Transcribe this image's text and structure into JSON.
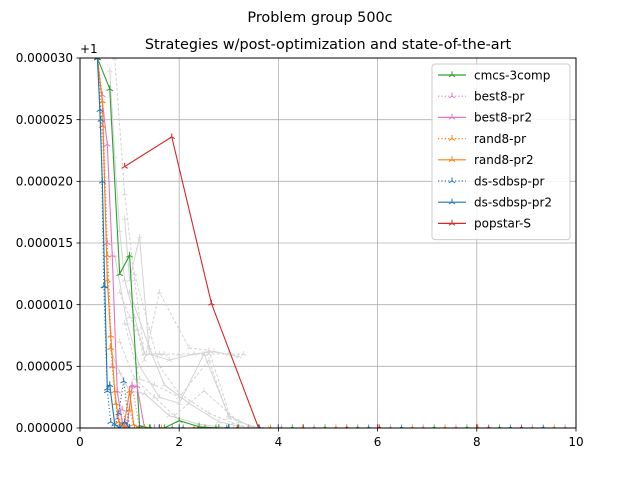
{
  "chart_data": {
    "type": "line",
    "suptitle": "Problem group 500c",
    "title": "Strategies w/post-optimization and state-of-the-art",
    "xlabel": "",
    "ylabel": "",
    "offset_text": "+1",
    "xlim": [
      0,
      10
    ],
    "ylim": [
      0,
      3e-05
    ],
    "xticks": [
      0,
      2,
      4,
      6,
      8,
      10
    ],
    "xtick_labels": [
      "0",
      "2",
      "4",
      "6",
      "8",
      "10"
    ],
    "yticks": [
      0,
      5e-06,
      1e-05,
      1.5e-05,
      2e-05,
      2.5e-05,
      3e-05
    ],
    "ytick_labels": [
      "0.000000",
      "0.000005",
      "0.000010",
      "0.000015",
      "0.000020",
      "0.000025",
      "0.000030"
    ],
    "grid": true,
    "legend_position": "top-right",
    "series": [
      {
        "name": "cmcs-3comp",
        "color": "#2ca02c",
        "dash": "solid",
        "x": [
          0.35,
          0.6,
          0.8,
          1.0,
          1.2,
          1.4,
          1.7,
          2.0,
          2.4,
          2.8,
          3.2,
          3.6,
          4.5,
          6,
          8,
          10
        ],
        "y": [
          3e-05,
          2.75e-05,
          1.25e-05,
          1.4e-05,
          2e-07,
          0,
          0,
          6e-07,
          1e-07,
          0,
          0,
          0,
          0,
          0,
          0,
          0
        ]
      },
      {
        "name": "best8-pr",
        "color": "#e377c2",
        "dash": "dotted",
        "x": [
          0.35,
          0.45,
          0.55,
          0.65,
          0.75,
          0.85,
          0.95,
          1.05,
          1.2,
          1.5,
          2,
          3,
          4,
          6,
          8,
          10
        ],
        "y": [
          3e-05,
          2.7e-05,
          1.5e-05,
          5e-06,
          8e-07,
          1.5e-06,
          2e-07,
          3.5e-06,
          0,
          0,
          0,
          0,
          0,
          0,
          0,
          0
        ]
      },
      {
        "name": "best8-pr2",
        "color": "#e377c2",
        "dash": "solid",
        "x": [
          0.35,
          0.45,
          0.55,
          0.65,
          0.75,
          0.85,
          0.95,
          1.05,
          1.15,
          1.3,
          1.6,
          2,
          3,
          4,
          6,
          8,
          10
        ],
        "y": [
          3e-05,
          2.65e-05,
          2.3e-05,
          1.4e-05,
          3e-06,
          5e-07,
          1e-07,
          3.4e-06,
          3.4e-06,
          0,
          0,
          0,
          0,
          0,
          0,
          0,
          0
        ]
      },
      {
        "name": "rand8-pr",
        "color": "#ff7f0e",
        "dash": "dotted",
        "x": [
          0.35,
          0.45,
          0.55,
          0.62,
          0.72,
          0.8,
          0.9,
          1.0,
          1.1,
          1.3,
          1.6,
          2,
          3,
          4,
          6,
          8,
          10
        ],
        "y": [
          3e-05,
          2.45e-05,
          1.4e-05,
          6.5e-06,
          2e-06,
          3e-07,
          0,
          1.5e-06,
          0,
          0,
          0,
          0,
          0,
          0,
          0,
          0,
          0
        ]
      },
      {
        "name": "rand8-pr2",
        "color": "#ff7f0e",
        "dash": "solid",
        "x": [
          0.35,
          0.45,
          0.55,
          0.62,
          0.7,
          0.78,
          0.88,
          1.0,
          1.08,
          1.2,
          1.6,
          2,
          3,
          4,
          6,
          8,
          10
        ],
        "y": [
          3e-05,
          2.65e-05,
          1.2e-05,
          7.5e-06,
          3e-06,
          5e-07,
          0,
          3e-06,
          3e-07,
          0,
          0,
          0,
          0,
          0,
          0,
          0,
          0
        ]
      },
      {
        "name": "ds-sdbsp-pr",
        "color": "#1f77b4",
        "dash": "dotted",
        "x": [
          0.35,
          0.42,
          0.48,
          0.55,
          0.62,
          0.7,
          0.78,
          0.88,
          1.0,
          1.2,
          1.6,
          2,
          3,
          4,
          6,
          8,
          10
        ],
        "y": [
          3e-05,
          2.5e-05,
          1.15e-05,
          3e-06,
          5e-07,
          0,
          1.2e-06,
          3.8e-06,
          0,
          0,
          0,
          0,
          0,
          0,
          0,
          0,
          0
        ]
      },
      {
        "name": "ds-sdbsp-pr2",
        "color": "#1f77b4",
        "dash": "solid",
        "x": [
          0.35,
          0.4,
          0.45,
          0.5,
          0.55,
          0.6,
          0.7,
          0.8,
          0.9,
          1.0,
          1.2,
          1.6,
          2,
          3,
          4,
          6,
          8,
          10
        ],
        "y": [
          3e-05,
          2.58e-05,
          2e-05,
          1.15e-05,
          3.2e-06,
          3.5e-06,
          3e-07,
          0,
          5e-07,
          0,
          0,
          0,
          0,
          0,
          0,
          0,
          0,
          0
        ]
      },
      {
        "name": "popstar-S",
        "color": "#d62728",
        "dash": "solid",
        "x": [
          0.9,
          1.85,
          2.65,
          3.6,
          4.5,
          6,
          8,
          10
        ],
        "y": [
          2.12e-05,
          2.36e-05,
          1.01e-05,
          0,
          0,
          0,
          0,
          0
        ]
      }
    ],
    "background_series": [
      {
        "x": [
          0.6,
          0.7,
          0.8,
          0.9,
          1.1,
          1.3,
          1.7
        ],
        "y": [
          2.9e-05,
          2.2e-05,
          1.6e-05,
          1.2e-05,
          9e-06,
          6e-06,
          6e-06
        ]
      },
      {
        "x": [
          0.7,
          0.9,
          1.1,
          1.3,
          1.6,
          2.0,
          2.6,
          3.0,
          3.3
        ],
        "y": [
          3e-05,
          1.9e-05,
          1.2e-05,
          6e-06,
          6e-06,
          6e-06,
          6e-06,
          6e-06,
          6e-06
        ]
      },
      {
        "x": [
          0.9,
          1.0,
          1.2,
          1.4,
          1.8,
          2.3,
          2.7,
          3.2
        ],
        "y": [
          1.7e-05,
          1.2e-05,
          1.55e-05,
          6e-06,
          5.5e-06,
          6e-06,
          6.2e-06,
          5.8e-06
        ]
      },
      {
        "x": [
          0.8,
          1.0,
          1.15,
          1.3,
          1.6,
          2.2,
          2.6,
          3.1
        ],
        "y": [
          1.1e-05,
          9e-06,
          8e-06,
          5.5e-06,
          1.1e-05,
          6.5e-06,
          6.3e-06,
          0
        ]
      },
      {
        "x": [
          0.7,
          0.95,
          1.2,
          1.6,
          2.0,
          2.5,
          3.0,
          3.5
        ],
        "y": [
          1.4e-05,
          8.5e-06,
          5e-06,
          2.5e-06,
          2e-06,
          6e-06,
          1e-06,
          0
        ]
      },
      {
        "x": [
          0.8,
          1.1,
          1.5,
          1.9,
          2.5,
          3.2,
          3.6
        ],
        "y": [
          7e-06,
          4e-06,
          2.5e-06,
          1e-06,
          3e-06,
          5e-07,
          0
        ]
      },
      {
        "x": [
          1.0,
          1.4,
          1.7,
          2.2,
          2.8,
          3.4
        ],
        "y": [
          1.1e-05,
          6.5e-06,
          3.5e-06,
          2e-06,
          5e-07,
          0
        ]
      },
      {
        "x": [
          0.9,
          1.2,
          1.5,
          2.0,
          2.6,
          3.0,
          3.6
        ],
        "y": [
          8.5e-06,
          4e-06,
          3.5e-06,
          2.5e-06,
          5.5e-06,
          8e-07,
          0
        ]
      },
      {
        "x": [
          0.6,
          0.8,
          1.0,
          1.3,
          1.8,
          2.4,
          3.0
        ],
        "y": [
          6.5e-06,
          4.5e-06,
          3e-06,
          2.8e-06,
          1e-06,
          3e-07,
          0
        ]
      },
      {
        "x": [
          1.1,
          1.4,
          1.6,
          2.0,
          2.6,
          3.2,
          3.8
        ],
        "y": [
          1.25e-05,
          8e-06,
          5e-06,
          2.8e-06,
          1.2e-06,
          2e-07,
          0
        ]
      }
    ]
  }
}
